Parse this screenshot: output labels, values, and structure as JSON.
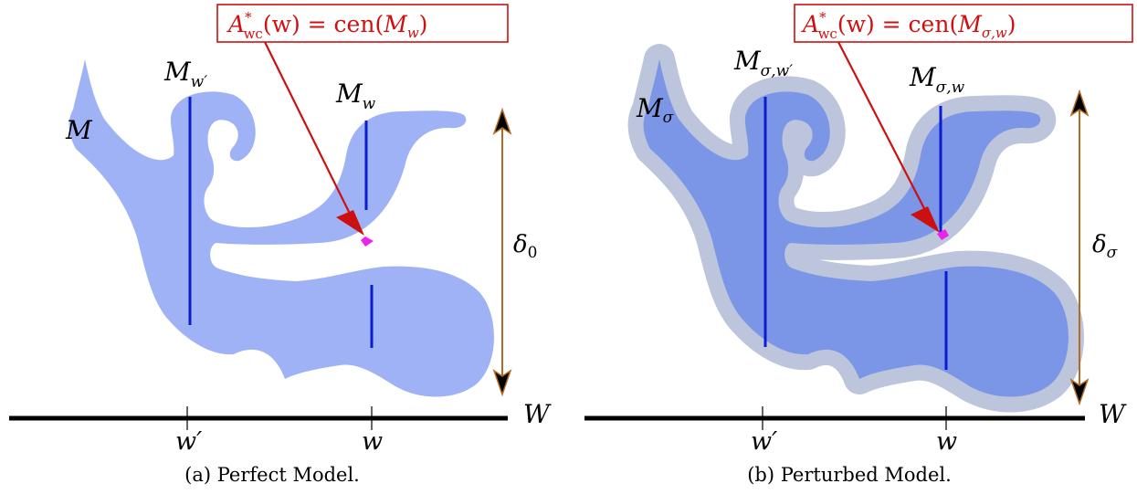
{
  "panels": [
    {
      "caption": "(a) Perfect Model.",
      "box": {
        "pre": "A",
        "sup": "*",
        "sub": "wc",
        "mid": "(w) = cen(",
        "cal": "M",
        "calsub": "w",
        "post": ")"
      },
      "set_label": {
        "cal": "M",
        "sub": ""
      },
      "slice_left": {
        "cal": "M",
        "sub": "w′"
      },
      "slice_right": {
        "cal": "M",
        "sub": "w"
      },
      "delta": {
        "base": "δ",
        "sub": "0"
      },
      "axis": {
        "label": "W",
        "tick_left": "w′",
        "tick_right": "w"
      }
    },
    {
      "caption": "(b) Perturbed Model.",
      "box": {
        "pre": "A",
        "sup": "*",
        "sub": "wc",
        "mid": "(w) = cen(",
        "cal": "M",
        "calsub": "σ,w",
        "post": ")"
      },
      "set_label": {
        "cal": "M",
        "sub": "σ"
      },
      "slice_left": {
        "cal": "M",
        "sub": "σ,w′"
      },
      "slice_right": {
        "cal": "M",
        "sub": "σ,w"
      },
      "delta": {
        "base": "δ",
        "sub": "σ"
      },
      "axis": {
        "label": "W",
        "tick_left": "w′",
        "tick_right": "w"
      }
    }
  ],
  "colors": {
    "fill_a": "#9fb2f6",
    "fill_b_inner": "#7b96e6",
    "fill_b_outer": "#bcc5dc",
    "slice": "#0a1ecf",
    "arrow_red": "#cc1010",
    "delta_arrow": "#b36a22",
    "point": "#ee22ee"
  }
}
